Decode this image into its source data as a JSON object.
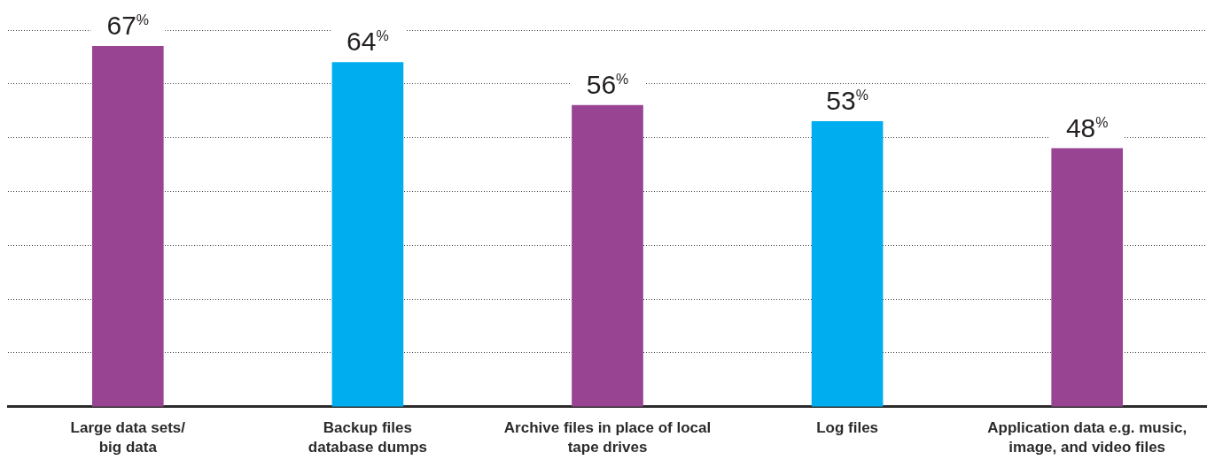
{
  "chart_data": {
    "type": "bar",
    "categories": [
      "Large data sets/\nbig data",
      "Backup files\ndatabase dumps",
      "Archive files in place of local\ntape drives",
      "Log files",
      "Application data e.g. music,\nimage, and video files"
    ],
    "values": [
      67,
      64,
      56,
      53,
      48
    ],
    "value_labels": [
      "67$^{%}$",
      "64$^{%}$",
      "56$^{%}$",
      "53$^{%}$",
      "48$^{%}$"
    ],
    "colors": [
      "#984493",
      "#00aeef",
      "#984493",
      "#00aeef",
      "#984493"
    ],
    "ylim": [
      0,
      70
    ],
    "yticks": [
      {
        "value": 0,
        "label": null
      },
      {
        "value": 10,
        "label": null
      },
      {
        "value": 20,
        "label": null
      },
      {
        "value": 30,
        "label": null
      },
      {
        "value": 40,
        "label": null
      },
      {
        "value": 50,
        "label": null
      },
      {
        "value": 60,
        "label": null
      },
      {
        "value": 70,
        "label": null
      }
    ],
    "grid": "y",
    "tick_labels": "x"
  }
}
